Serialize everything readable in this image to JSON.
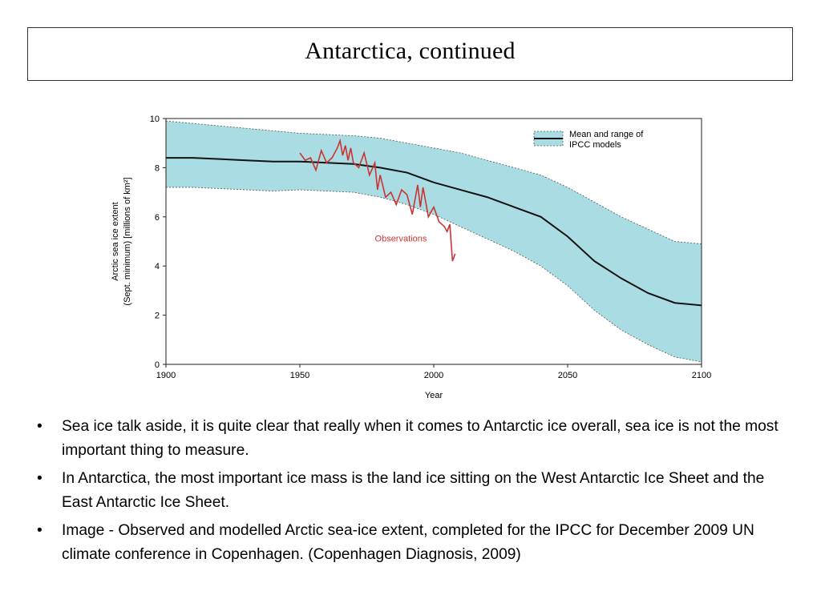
{
  "slide": {
    "title": "Antarctica, continued"
  },
  "bullets": [
    "Sea ice talk aside, it is quite clear that really when it comes to Antarctic ice overall, sea ice is not the most important thing to measure.",
    "In Antarctica, the most important ice mass is the land ice sitting on the West Antarctic Ice Sheet and the East Antarctic Ice Sheet.",
    "Image - Observed and modelled Arctic sea-ice extent, completed for the IPCC for December 2009 UN climate conference in Copenhagen. (Copenhagen Diagnosis, 2009)"
  ],
  "colors": {
    "band_fill": "#a9dde3",
    "mean_line": "#111111",
    "observations": "#cc3333"
  },
  "chart_data": {
    "type": "line",
    "xlabel": "Year",
    "ylabel_line1": "Arctic sea ice extent",
    "ylabel_line2": "(Sept. minimum) [millions of km²]",
    "xlim": [
      1900,
      2100
    ],
    "ylim": [
      0,
      10
    ],
    "x_ticks": [
      "1900",
      "1950",
      "2000",
      "2050",
      "2100"
    ],
    "y_ticks": [
      "0",
      "2",
      "4",
      "6",
      "8",
      "10"
    ],
    "legend": {
      "label_line1": "Mean and range of",
      "label_line2": "IPCC models",
      "position": "top-right"
    },
    "annotation": "Observations",
    "model_years": [
      1900,
      1910,
      1920,
      1930,
      1940,
      1950,
      1960,
      1970,
      1980,
      1990,
      2000,
      2010,
      2020,
      2030,
      2040,
      2050,
      2060,
      2070,
      2080,
      2090,
      2100
    ],
    "model_mean": [
      8.4,
      8.4,
      8.35,
      8.3,
      8.25,
      8.25,
      8.2,
      8.15,
      8.0,
      7.8,
      7.4,
      7.1,
      6.8,
      6.4,
      6.0,
      5.2,
      4.2,
      3.5,
      2.9,
      2.5,
      2.4
    ],
    "model_upper": [
      9.9,
      9.8,
      9.7,
      9.6,
      9.5,
      9.4,
      9.35,
      9.3,
      9.2,
      9.0,
      8.8,
      8.6,
      8.3,
      8.0,
      7.7,
      7.2,
      6.6,
      6.0,
      5.5,
      5.0,
      4.9
    ],
    "model_lower": [
      7.2,
      7.2,
      7.15,
      7.1,
      7.05,
      7.1,
      7.05,
      7.0,
      6.8,
      6.5,
      6.1,
      5.6,
      5.1,
      4.6,
      4.0,
      3.2,
      2.2,
      1.4,
      0.8,
      0.3,
      0.1
    ],
    "obs_years": [
      1950,
      1952,
      1954,
      1956,
      1958,
      1960,
      1962,
      1964,
      1965,
      1966,
      1967,
      1968,
      1969,
      1970,
      1972,
      1974,
      1976,
      1978,
      1979,
      1980,
      1982,
      1984,
      1986,
      1988,
      1990,
      1992,
      1994,
      1995,
      1996,
      1998,
      2000,
      2002,
      2004,
      2005,
      2006,
      2007,
      2008
    ],
    "obs_values": [
      8.6,
      8.3,
      8.4,
      7.9,
      8.7,
      8.2,
      8.4,
      8.8,
      9.1,
      8.5,
      8.9,
      8.3,
      8.8,
      8.2,
      8.0,
      8.6,
      7.7,
      8.2,
      7.1,
      7.7,
      6.8,
      7.0,
      6.5,
      7.1,
      6.9,
      6.1,
      7.3,
      6.4,
      7.2,
      6.0,
      6.4,
      5.8,
      5.6,
      5.4,
      5.7,
      4.2,
      4.5
    ]
  }
}
